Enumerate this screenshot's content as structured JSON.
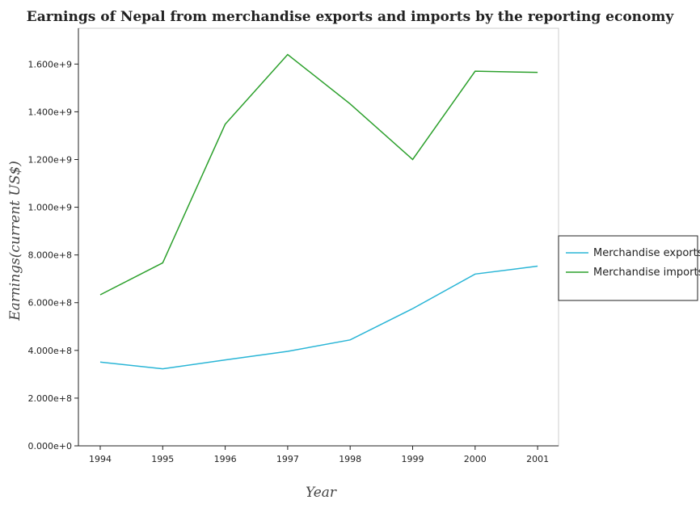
{
  "chart_data": {
    "type": "line",
    "title": "Earnings of Nepal from merchandise exports and imports by the reporting economy",
    "xlabel": "Year",
    "ylabel": "Earnings(current US$)",
    "categories": [
      "1994",
      "1995",
      "1996",
      "1997",
      "1998",
      "1999",
      "2000",
      "2001"
    ],
    "ylim": [
      0,
      1750000000
    ],
    "yticks": [
      0,
      200000000,
      400000000,
      600000000,
      800000000,
      1000000000,
      1200000000,
      1400000000,
      1600000000
    ],
    "ytick_labels": [
      "0.000e+0",
      "2.000e+8",
      "4.000e+8",
      "6.000e+8",
      "8.000e+8",
      "1.000e+9",
      "1.200e+9",
      "1.400e+9",
      "1.600e+9"
    ],
    "grid": false,
    "legend_position": "right",
    "series": [
      {
        "name": "Merchandise exports",
        "color": "#29b5d6",
        "values": [
          351000000,
          323000000,
          360000000,
          396000000,
          444000000,
          575000000,
          720000000,
          753000000
        ]
      },
      {
        "name": "Merchandise imports",
        "color": "#2ca02c",
        "values": [
          633000000,
          767000000,
          1348000000,
          1640000000,
          1433000000,
          1200000000,
          1570000000,
          1565000000
        ]
      }
    ]
  }
}
